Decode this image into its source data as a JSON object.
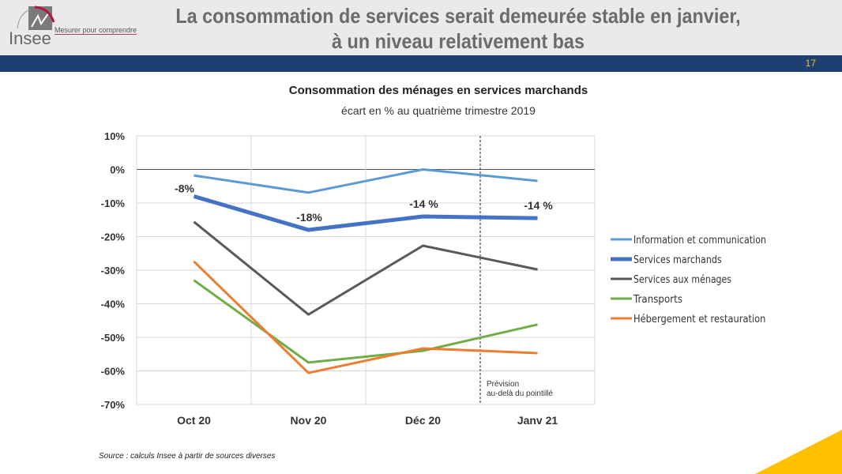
{
  "header": {
    "title_line1": "La consommation de services serait demeurée stable en janvier,",
    "title_line2": "à un niveau relativement bas",
    "logo_text": "Insee",
    "logo_tagline": "Mesurer pour comprendre",
    "page_number": "17"
  },
  "colors": {
    "header_band": "#1f3f73",
    "accent": "#ffc000"
  },
  "chart_data": {
    "type": "line",
    "title": "Consommation des ménages en services marchands",
    "subtitle": "écart en % au quatrième trimestre 2019",
    "categories": [
      "Oct 20",
      "Nov 20",
      "Déc 20",
      "Janv 21"
    ],
    "ylim": [
      -70,
      10
    ],
    "yticks": [
      "10%",
      "0%",
      "-10%",
      "-20%",
      "-30%",
      "-40%",
      "-50%",
      "-60%",
      "-70%"
    ],
    "ytick_values": [
      10,
      0,
      -10,
      -20,
      -30,
      -40,
      -50,
      -60,
      -70
    ],
    "grid": true,
    "legend": "right",
    "series": [
      {
        "name": "Information et communication",
        "color": "#5b9bd5",
        "values": [
          -1.8,
          -6.9,
          0,
          -3.4
        ]
      },
      {
        "name": "Services marchands",
        "color": "#4472c4",
        "bold": true,
        "values": [
          -8,
          -18,
          -14,
          -14.5
        ],
        "labels": [
          "-8%",
          "-18%",
          "-14 %",
          "-14 %"
        ]
      },
      {
        "name": "Services aux ménages",
        "color": "#595959",
        "values": [
          -15.6,
          -43.2,
          -22.7,
          -29.8
        ]
      },
      {
        "name": "Transports",
        "color": "#70ad47",
        "values": [
          -33,
          -57.5,
          -54,
          -46.2
        ]
      },
      {
        "name": "Hébergement et restauration",
        "color": "#ed7d31",
        "values": [
          -27.4,
          -60.6,
          -53.3,
          -54.7
        ]
      }
    ],
    "forecast_annotation": [
      "Prévision",
      "au-delà du pointillé"
    ]
  },
  "footer": {
    "source": "Source : calculs Insee à partir de sources diverses"
  }
}
